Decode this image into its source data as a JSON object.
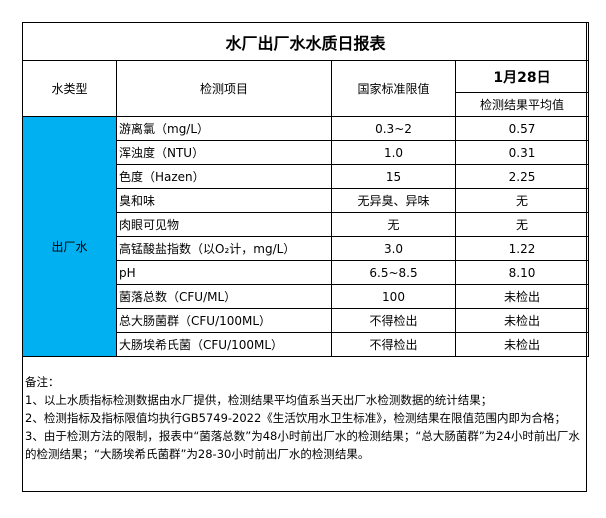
{
  "title": "水厂出厂水水质日报表",
  "headers": {
    "type": "水类型",
    "item": "检测项目",
    "limit": "国家标准限值",
    "date": "1月28日",
    "result": "检测结果平均值"
  },
  "water_type": "出厂水",
  "rows": [
    {
      "item": "游离氯（mg/L）",
      "limit": "0.3~2",
      "result": "0.57"
    },
    {
      "item": "浑浊度（NTU）",
      "limit": "1.0",
      "result": "0.31"
    },
    {
      "item": "色度（Hazen）",
      "limit": "15",
      "result": "2.25"
    },
    {
      "item": "臭和味",
      "limit": "无异臭、异味",
      "result": "无"
    },
    {
      "item": "肉眼可见物",
      "limit": "无",
      "result": "无"
    },
    {
      "item": "高锰酸盐指数（以O₂计，mg/L）",
      "limit": "3.0",
      "result": "1.22"
    },
    {
      "item": "pH",
      "limit": "6.5~8.5",
      "result": "8.10"
    },
    {
      "item": "菌落总数（CFU/ML）",
      "limit": "100",
      "result": "未检出"
    },
    {
      "item": "总大肠菌群（CFU/100ML）",
      "limit": "不得检出",
      "result": "未检出"
    },
    {
      "item": "大肠埃希氏菌（CFU/100ML）",
      "limit": "不得检出",
      "result": "未检出"
    }
  ],
  "notes": [
    "备注：",
    "1、以上水质指标检测数据由水厂提供，检测结果平均值系当天出厂水检测数据的统计结果；",
    "2、检测指标及指标限值均执行GB5749-2022《生活饮用水卫生标准》，检测结果在限值范围内即为合格；",
    "3、由于检测方法的限制，报表中“菌落总数”为48小时前出厂水的检测结果；“总大肠菌群”为24小时前出厂水的检测结果；“大肠埃希氏菌群”为28-30小时前出厂水的检测结果。"
  ],
  "colors": {
    "highlight": "#00b0f0"
  }
}
